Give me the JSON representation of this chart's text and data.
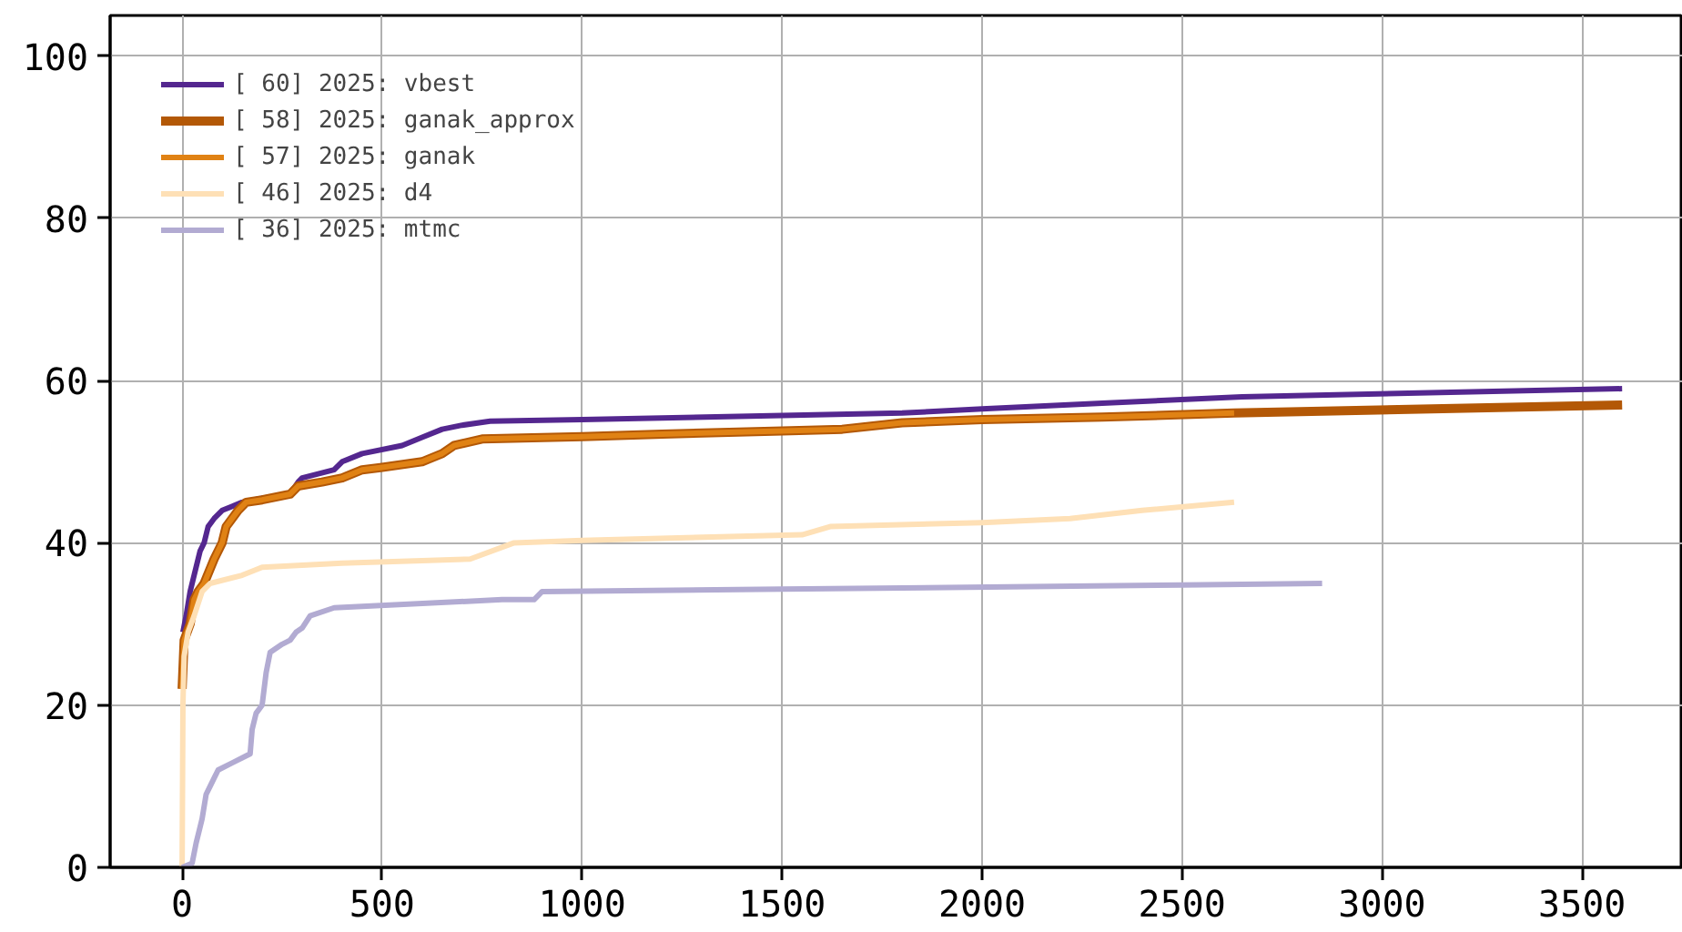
{
  "chart_data": {
    "type": "line",
    "xlim": [
      -180,
      3752
    ],
    "ylim": [
      0,
      105
    ],
    "xticks": [
      0,
      500,
      1000,
      1500,
      2000,
      2500,
      3000,
      3500
    ],
    "yticks": [
      0,
      20,
      40,
      60,
      80,
      100
    ],
    "grid": true,
    "legend": "top left",
    "marker": "none",
    "line_style": "solid",
    "series": [
      {
        "name": "[ 60] 2025: vbest",
        "color": "#54278f",
        "x": [
          2,
          10,
          20,
          30,
          45,
          55,
          65,
          80,
          100,
          150,
          200,
          270,
          290,
          300,
          380,
          400,
          450,
          550,
          600,
          650,
          700,
          770,
          1000,
          1500,
          1800,
          2000,
          2300,
          2650,
          3600
        ],
        "values": [
          29,
          31,
          34,
          36,
          39,
          40,
          42,
          43,
          44,
          45,
          45.5,
          46,
          47.5,
          48,
          49,
          50,
          51,
          52,
          53,
          54,
          54.5,
          55,
          55.2,
          55.7,
          56,
          56.5,
          57.2,
          58,
          59
        ]
      },
      {
        "name": "[ 58] 2025: ganak_approx",
        "color": "#b35806",
        "x": [
          0,
          5,
          20,
          30,
          40,
          55,
          80,
          100,
          110,
          140,
          160,
          200,
          270,
          290,
          350,
          400,
          450,
          500,
          600,
          650,
          680,
          750,
          1000,
          1200,
          1500,
          1650,
          1800,
          2000,
          2300,
          2630,
          3600
        ],
        "values": [
          22,
          28,
          30,
          33,
          34,
          35,
          38,
          40,
          42,
          44,
          45,
          45.3,
          46,
          47,
          47.5,
          48,
          49,
          49.3,
          50,
          51,
          52,
          52.8,
          53.1,
          53.4,
          53.8,
          54,
          54.8,
          55.2,
          55.5,
          56,
          57
        ]
      },
      {
        "name": "[ 57] 2025: ganak",
        "color": "#e08214",
        "x": [
          0,
          5,
          20,
          30,
          40,
          55,
          80,
          100,
          110,
          140,
          160,
          200,
          270,
          290,
          350,
          400,
          450,
          500,
          600,
          650,
          680,
          750,
          1000,
          1200,
          1500,
          1650,
          1800,
          2000,
          2300,
          2630
        ],
        "values": [
          22,
          28,
          30,
          33,
          34,
          35,
          38,
          40,
          42,
          44,
          45,
          45.3,
          46,
          47,
          47.5,
          48,
          49,
          49.3,
          50,
          51,
          52,
          52.8,
          53.1,
          53.4,
          53.8,
          54,
          54.8,
          55.2,
          55.5,
          56
        ]
      },
      {
        "name": "[ 46] 2025: d4",
        "color": "#fee0b6",
        "x": [
          0,
          2,
          5,
          15,
          30,
          50,
          70,
          150,
          200,
          400,
          600,
          720,
          830,
          1000,
          1550,
          1620,
          2000,
          2220,
          2400,
          2630
        ],
        "values": [
          0,
          20,
          26,
          29,
          31,
          34,
          35,
          36,
          37,
          37.5,
          37.8,
          38,
          40,
          40.3,
          41,
          42,
          42.5,
          43,
          44,
          45
        ]
      },
      {
        "name": "[ 36] 2025: mtmc",
        "color": "#b2abd2",
        "x": [
          0,
          25,
          35,
          45,
          50,
          60,
          70,
          80,
          90,
          170,
          175,
          185,
          200,
          210,
          220,
          250,
          270,
          285,
          300,
          320,
          380,
          800,
          880,
          900,
          1500,
          2500,
          2850
        ],
        "values": [
          0,
          0.5,
          3,
          5,
          6,
          9,
          10,
          11,
          12,
          14,
          17,
          19,
          20,
          24,
          26.5,
          27.5,
          28,
          29,
          29.5,
          31,
          32,
          33,
          33,
          34,
          34.3,
          34.8,
          35
        ]
      }
    ]
  }
}
